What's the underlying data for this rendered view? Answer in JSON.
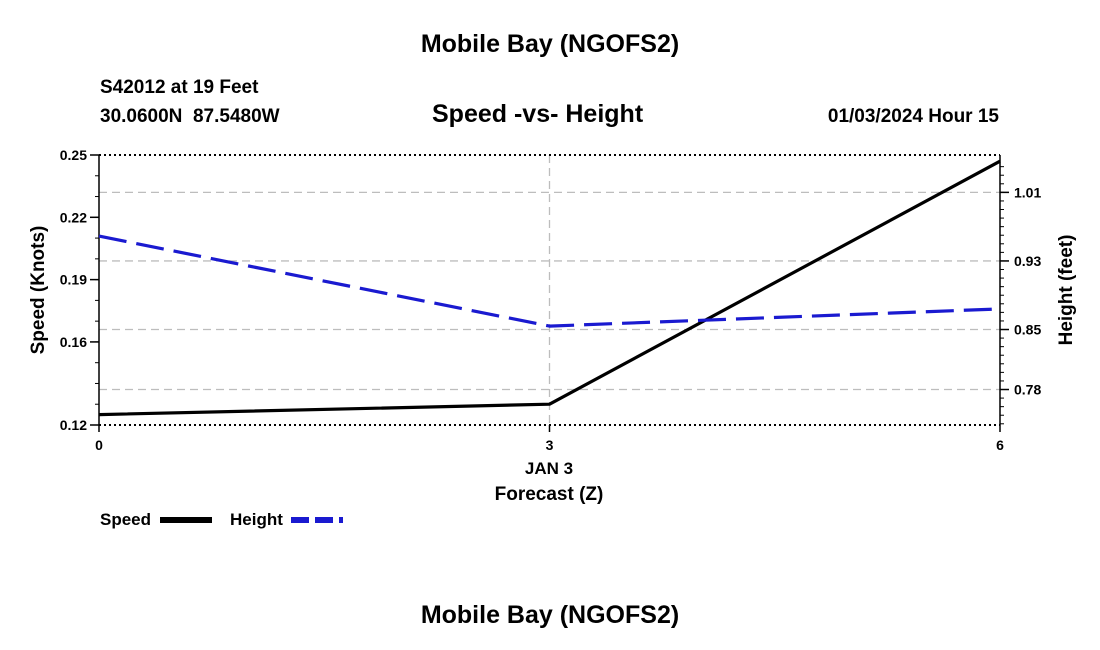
{
  "page": {
    "title": "Mobile Bay (NGOFS2)",
    "station_line": "S42012 at 19 Feet",
    "coords_line": "30.0600N  87.5480W",
    "plot_title": "Speed -vs- Height",
    "datetime": "01/03/2024 Hour 15",
    "bottom_title": "Mobile Bay (NGOFS2)"
  },
  "chart_data": {
    "type": "line",
    "title": "Speed -vs- Height",
    "xlabel": "Forecast (Z)",
    "x_date_label": "JAN 3",
    "x": [
      0,
      3,
      6
    ],
    "x_tick_labels": [
      "0",
      "3",
      "6"
    ],
    "xlim": [
      0,
      6
    ],
    "y_left": {
      "label": "Speed (Knots)",
      "lim": [
        0.12,
        0.25
      ],
      "ticks": [
        0.12,
        0.16,
        0.19,
        0.22,
        0.25
      ],
      "tick_labels": [
        "0.12",
        "0.16",
        "0.19",
        "0.22",
        "0.25"
      ]
    },
    "y_right": {
      "label": "Height (feet)",
      "lim": [
        0.7386,
        1.0536
      ],
      "ticks": [
        0.78,
        0.85,
        0.93,
        1.01
      ],
      "tick_labels": [
        "0.78",
        "0.85",
        "0.93",
        "1.01"
      ]
    },
    "series": [
      {
        "name": "Speed",
        "axis": "left",
        "values": [
          0.125,
          0.13,
          0.247
        ],
        "color": "#000000",
        "style": "solid"
      },
      {
        "name": "Height",
        "axis": "right",
        "values": [
          0.959,
          0.854,
          0.874
        ],
        "color": "#1a1ad0",
        "style": "dashed"
      }
    ],
    "grid": true,
    "legend_placement": "bottom-left"
  }
}
